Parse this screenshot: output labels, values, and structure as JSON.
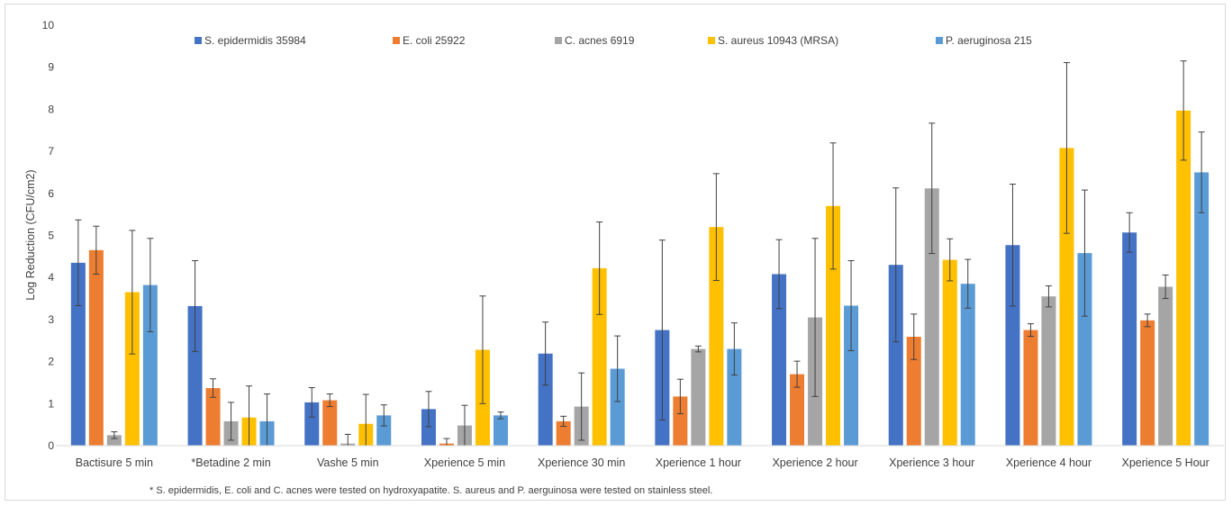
{
  "chart_data": {
    "type": "bar",
    "title": "",
    "xlabel": "",
    "ylabel": "Log Reduction (CFU/cm2)",
    "ylim": [
      0,
      10
    ],
    "yticks": [
      0,
      1,
      2,
      3,
      4,
      5,
      6,
      7,
      8,
      9,
      10
    ],
    "grid": false,
    "legend_position": "top",
    "categories": [
      "Bactisure 5 min",
      "*Betadine 2 min",
      "Vashe 5 min",
      "Xperience 5 min",
      "Xperience 30 min",
      "Xperience 1 hour",
      "Xperience 2 hour",
      "Xperience 3 hour",
      "Xperience 4 hour",
      "Xperience 5 Hour"
    ],
    "series": [
      {
        "name": "S. epidermidis 35984",
        "color": "#4472c4",
        "values": [
          4.35,
          3.32,
          1.03,
          0.87,
          2.19,
          2.75,
          4.08,
          4.3,
          4.77,
          5.07
        ],
        "errors": [
          1.02,
          1.08,
          0.35,
          0.42,
          0.75,
          2.14,
          0.82,
          1.83,
          1.45,
          0.47
        ]
      },
      {
        "name": "E. coli 25922",
        "color": "#ed7d31",
        "values": [
          4.65,
          1.37,
          1.08,
          0.05,
          0.58,
          1.17,
          1.7,
          2.59,
          2.75,
          2.98
        ],
        "errors": [
          0.57,
          0.22,
          0.15,
          0.12,
          0.12,
          0.41,
          0.31,
          0.54,
          0.15,
          0.15
        ]
      },
      {
        "name": "C. acnes 6919",
        "color": "#a5a5a5",
        "values": [
          0.25,
          0.58,
          0.05,
          0.48,
          0.93,
          2.3,
          3.05,
          6.12,
          3.55,
          3.78
        ],
        "errors": [
          0.08,
          0.45,
          0.22,
          0.48,
          0.8,
          0.07,
          1.88,
          1.55,
          0.25,
          0.28
        ]
      },
      {
        "name": "S. aureus 10943 (MRSA)",
        "color": "#ffc000",
        "values": [
          3.65,
          0.67,
          0.52,
          2.28,
          4.22,
          5.2,
          5.7,
          4.42,
          7.08,
          7.97
        ],
        "errors": [
          1.47,
          0.75,
          0.7,
          1.28,
          1.1,
          1.27,
          1.5,
          0.5,
          2.03,
          1.18
        ]
      },
      {
        "name": "P. aeruginosa 215",
        "color": "#5b9bd5",
        "values": [
          3.82,
          0.58,
          0.72,
          0.72,
          1.83,
          2.3,
          3.33,
          3.85,
          4.58,
          6.5
        ],
        "errors": [
          1.11,
          0.65,
          0.25,
          0.08,
          0.78,
          0.62,
          1.07,
          0.58,
          1.5,
          0.96
        ]
      }
    ],
    "footnote": "* S. epidermidis, E. coli and C. acnes were tested on hydroxyapatite. S. aureus and P. aerguinosa were tested on stainless steel."
  }
}
